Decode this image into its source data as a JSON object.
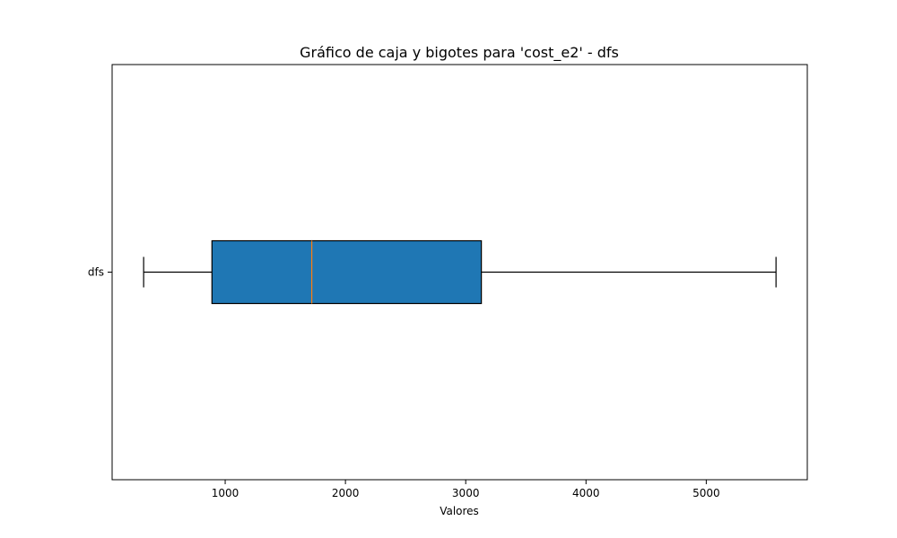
{
  "chart_data": {
    "type": "boxplot",
    "orientation": "horizontal",
    "title": "Gráfico de caja y bigotes para 'cost_e2' - dfs",
    "xlabel": "Valores",
    "ylabel": "",
    "xlim": [
      60,
      5840
    ],
    "x_ticks": [
      1000,
      2000,
      3000,
      4000,
      5000
    ],
    "x_tick_labels": [
      "1000",
      "2000",
      "3000",
      "4000",
      "5000"
    ],
    "categories": [
      "dfs"
    ],
    "boxes": [
      {
        "label": "dfs",
        "whisker_low": 322,
        "q1": 890,
        "median": 1720,
        "q3": 3130,
        "whisker_high": 5580
      }
    ],
    "colors": {
      "box_fill": "#1f77b4",
      "median": "#ff7f0e",
      "edge": "#000000"
    },
    "grid": false,
    "legend": "none"
  }
}
